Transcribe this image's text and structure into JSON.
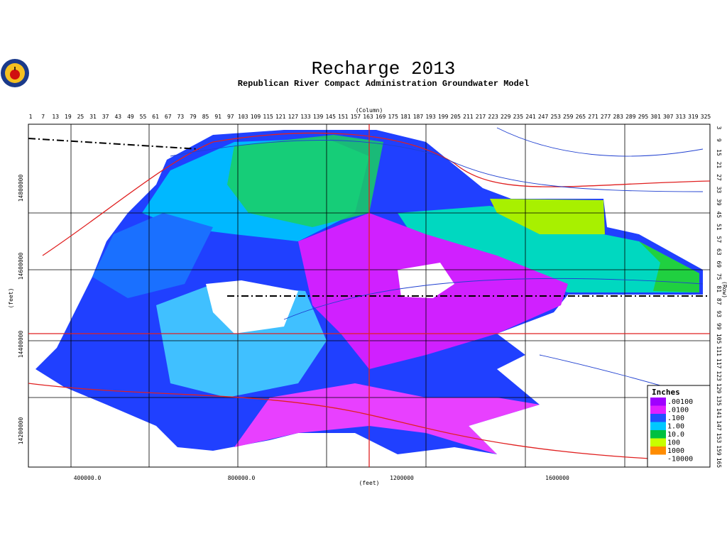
{
  "header": {
    "title": "Recharge 2013",
    "subtitle": "Republican River Compact Administration Groundwater Model"
  },
  "axes": {
    "column_label": "(Column)",
    "row_label": "(Row)",
    "x_label": "(feet)",
    "y_label": "(feet)",
    "columns": [
      1,
      7,
      13,
      19,
      25,
      31,
      37,
      43,
      49,
      55,
      61,
      67,
      73,
      79,
      85,
      91,
      97,
      103,
      109,
      115,
      121,
      127,
      133,
      139,
      145,
      151,
      157,
      163,
      169,
      175,
      181,
      187,
      193,
      199,
      205,
      211,
      217,
      223,
      229,
      235,
      241,
      247,
      253,
      259,
      265,
      271,
      277,
      283,
      289,
      295,
      301,
      307,
      313,
      319,
      325
    ],
    "rows": [
      3,
      9,
      15,
      21,
      27,
      33,
      39,
      45,
      51,
      57,
      63,
      69,
      75,
      81,
      87,
      93,
      99,
      105,
      111,
      117,
      123,
      129,
      135,
      141,
      147,
      153,
      159,
      165
    ],
    "x_ticks": [
      "400000.0",
      "800000.0",
      "1200000",
      "1600000"
    ],
    "y_ticks": [
      "14800000",
      "14600000",
      "14400000",
      "14200000"
    ]
  },
  "legend": {
    "title": "Inches",
    "entries": [
      {
        "label": ".00100",
        "color": "#a000ff"
      },
      {
        "label": ".0100",
        "color": "#e020ff"
      },
      {
        "label": ".100",
        "color": "#2050ff"
      },
      {
        "label": "1.00",
        "color": "#00c8ff"
      },
      {
        "label": "10.0",
        "color": "#00c040"
      },
      {
        "label": "100",
        "color": "#c8ff00"
      },
      {
        "label": "1000",
        "color": "#ff8c00"
      },
      {
        "label": "-10000",
        "color": "#ffffff"
      }
    ]
  }
}
